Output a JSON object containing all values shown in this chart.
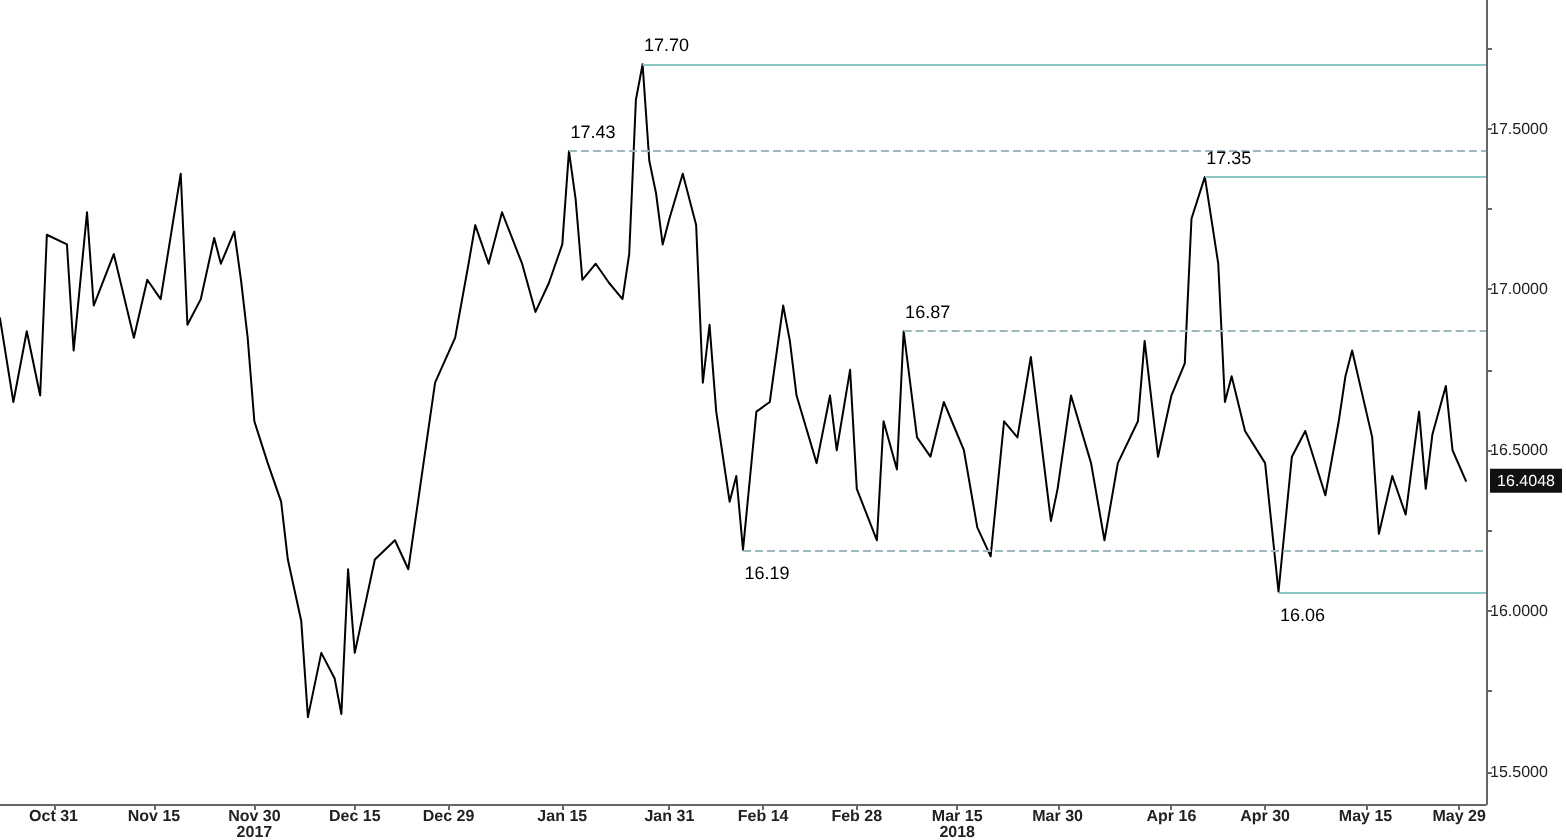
{
  "chart_data": {
    "type": "line",
    "marker": "none",
    "line_style": "solid",
    "grid": false,
    "x": [
      "2017-10-23",
      "2017-10-25",
      "2017-10-27",
      "2017-10-29",
      "2017-10-30",
      "2017-11-02",
      "2017-11-03",
      "2017-11-05",
      "2017-11-06",
      "2017-11-09",
      "2017-11-12",
      "2017-11-14",
      "2017-11-16",
      "2017-11-19",
      "2017-11-20",
      "2017-11-22",
      "2017-11-24",
      "2017-11-25",
      "2017-11-27",
      "2017-11-28",
      "2017-11-29",
      "2017-11-30",
      "2017-12-02",
      "2017-12-04",
      "2017-12-05",
      "2017-12-07",
      "2017-12-08",
      "2017-12-10",
      "2017-12-12",
      "2017-12-13",
      "2017-12-14",
      "2017-12-15",
      "2017-12-18",
      "2017-12-21",
      "2017-12-23",
      "2017-12-25",
      "2017-12-27",
      "2017-12-30",
      "2018-01-01",
      "2018-01-02",
      "2018-01-04",
      "2018-01-06",
      "2018-01-09",
      "2018-01-11",
      "2018-01-13",
      "2018-01-15",
      "2018-01-16",
      "2018-01-17",
      "2018-01-18",
      "2018-01-20",
      "2018-01-22",
      "2018-01-24",
      "2018-01-25",
      "2018-01-26",
      "2018-01-27",
      "2018-01-28",
      "2018-01-29",
      "2018-01-30",
      "2018-01-31",
      "2018-02-02",
      "2018-02-04",
      "2018-02-05",
      "2018-02-06",
      "2018-02-07",
      "2018-02-09",
      "2018-02-10",
      "2018-02-11",
      "2018-02-13",
      "2018-02-15",
      "2018-02-17",
      "2018-02-18",
      "2018-02-19",
      "2018-02-22",
      "2018-02-24",
      "2018-02-25",
      "2018-02-27",
      "2018-02-28",
      "2018-03-03",
      "2018-03-04",
      "2018-03-06",
      "2018-03-07",
      "2018-03-09",
      "2018-03-11",
      "2018-03-13",
      "2018-03-16",
      "2018-03-18",
      "2018-03-20",
      "2018-03-22",
      "2018-03-24",
      "2018-03-26",
      "2018-03-29",
      "2018-03-30",
      "2018-04-01",
      "2018-04-04",
      "2018-04-06",
      "2018-04-08",
      "2018-04-11",
      "2018-04-12",
      "2018-04-14",
      "2018-04-16",
      "2018-04-18",
      "2018-04-19",
      "2018-04-21",
      "2018-04-23",
      "2018-04-24",
      "2018-04-25",
      "2018-04-27",
      "2018-04-30",
      "2018-05-02",
      "2018-05-04",
      "2018-05-06",
      "2018-05-09",
      "2018-05-11",
      "2018-05-12",
      "2018-05-13",
      "2018-05-16",
      "2018-05-17",
      "2018-05-19",
      "2018-05-21",
      "2018-05-23",
      "2018-05-24",
      "2018-05-25",
      "2018-05-27",
      "2018-05-28",
      "2018-05-30"
    ],
    "series": [
      {
        "color": "#000000",
        "values": [
          16.91,
          16.65,
          16.87,
          16.67,
          17.17,
          17.14,
          16.81,
          17.24,
          16.95,
          17.11,
          16.85,
          17.03,
          16.97,
          17.36,
          16.89,
          16.97,
          17.16,
          17.08,
          17.18,
          17.03,
          16.85,
          16.59,
          16.46,
          16.34,
          16.16,
          15.97,
          15.67,
          15.87,
          15.79,
          15.68,
          16.13,
          15.87,
          16.16,
          16.22,
          16.13,
          16.42,
          16.71,
          16.85,
          17.08,
          17.2,
          17.08,
          17.24,
          17.08,
          16.93,
          17.02,
          17.14,
          17.43,
          17.28,
          17.03,
          17.08,
          17.02,
          16.97,
          17.11,
          17.59,
          17.7,
          17.4,
          17.3,
          17.14,
          17.22,
          17.36,
          17.2,
          16.71,
          16.89,
          16.62,
          16.34,
          16.42,
          16.19,
          16.62,
          16.65,
          16.95,
          16.84,
          16.67,
          16.46,
          16.67,
          16.5,
          16.75,
          16.38,
          16.22,
          16.59,
          16.44,
          16.87,
          16.54,
          16.48,
          16.65,
          16.5,
          16.26,
          16.17,
          16.59,
          16.54,
          16.79,
          16.28,
          16.38,
          16.67,
          16.46,
          16.22,
          16.46,
          16.59,
          16.84,
          16.48,
          16.67,
          16.77,
          17.22,
          17.35,
          17.08,
          16.65,
          16.73,
          16.56,
          16.46,
          16.06,
          16.48,
          16.56,
          16.36,
          16.59,
          16.73,
          16.81,
          16.54,
          16.24,
          16.42,
          16.3,
          16.62,
          16.38,
          16.55,
          16.7,
          16.5,
          16.4048
        ]
      }
    ],
    "xlim": [
      "2017-10-23",
      "2018-06-02"
    ],
    "xticks": [
      {
        "value": "2017-10-31",
        "label": "Oct 31"
      },
      {
        "value": "2017-11-15",
        "label": "Nov 15"
      },
      {
        "value": "2017-11-30",
        "label": "Nov 30\n2017"
      },
      {
        "value": "2017-12-15",
        "label": "Dec 15"
      },
      {
        "value": "2017-12-29",
        "label": "Dec 29"
      },
      {
        "value": "2018-01-15",
        "label": "Jan 15"
      },
      {
        "value": "2018-01-31",
        "label": "Jan 31"
      },
      {
        "value": "2018-02-14",
        "label": "Feb 14"
      },
      {
        "value": "2018-02-28",
        "label": "Feb 28"
      },
      {
        "value": "2018-03-15",
        "label": "Mar 15\n2018"
      },
      {
        "value": "2018-03-30",
        "label": "Mar 30"
      },
      {
        "value": "2018-04-16",
        "label": "Apr 16"
      },
      {
        "value": "2018-04-30",
        "label": "Apr 30"
      },
      {
        "value": "2018-05-15",
        "label": "May 15"
      },
      {
        "value": "2018-05-29",
        "label": "May 29"
      }
    ],
    "ylim": [
      15.4,
      17.9
    ],
    "yticks": [
      {
        "value": 15.5,
        "label": "15.5000"
      },
      {
        "value": 15.75,
        "label": null
      },
      {
        "value": 16,
        "label": "16.0000"
      },
      {
        "value": 16.25,
        "label": null
      },
      {
        "value": 16.5,
        "label": "16.5000"
      },
      {
        "value": 16.75,
        "label": null
      },
      {
        "value": 17,
        "label": "17.0000"
      },
      {
        "value": 17.25,
        "label": null
      },
      {
        "value": 17.5,
        "label": "17.5000"
      },
      {
        "value": 17.75,
        "label": null
      }
    ],
    "ref_lines": [
      {
        "axis": "y",
        "value": 17.7,
        "color": "#8cc8c4",
        "line_style": "solid"
      },
      {
        "axis": "y",
        "value": 17.43,
        "color": "#9fb8bd",
        "line_style": "dashed"
      },
      {
        "axis": "y",
        "value": 17.35,
        "color": "#8cc8c4",
        "line_style": "solid"
      },
      {
        "axis": "y",
        "value": 16.87,
        "color": "#9fb8bd",
        "line_style": "dashed"
      },
      {
        "axis": "y",
        "value": 16.19,
        "color": "#9fb8bd",
        "line_style": "dashed"
      },
      {
        "axis": "y",
        "value": 16.06,
        "color": "#8cc8c4",
        "line_style": "solid"
      }
    ],
    "annotations": [
      {
        "text": "17.70",
        "x": "2018-01-27",
        "y": 17.7
      },
      {
        "text": "17.43",
        "x": "2018-01-16",
        "y": 17.43
      },
      {
        "text": "17.35",
        "x": "2018-04-21",
        "y": 17.35
      },
      {
        "text": "16.87",
        "x": "2018-03-07",
        "y": 16.87
      },
      {
        "text": "16.19",
        "x": "2018-02-11",
        "y": 16.19
      },
      {
        "text": "16.06",
        "x": "2018-05-02",
        "y": 16.06
      },
      {
        "text": "16.4048",
        "y": 16.4048
      }
    ]
  }
}
